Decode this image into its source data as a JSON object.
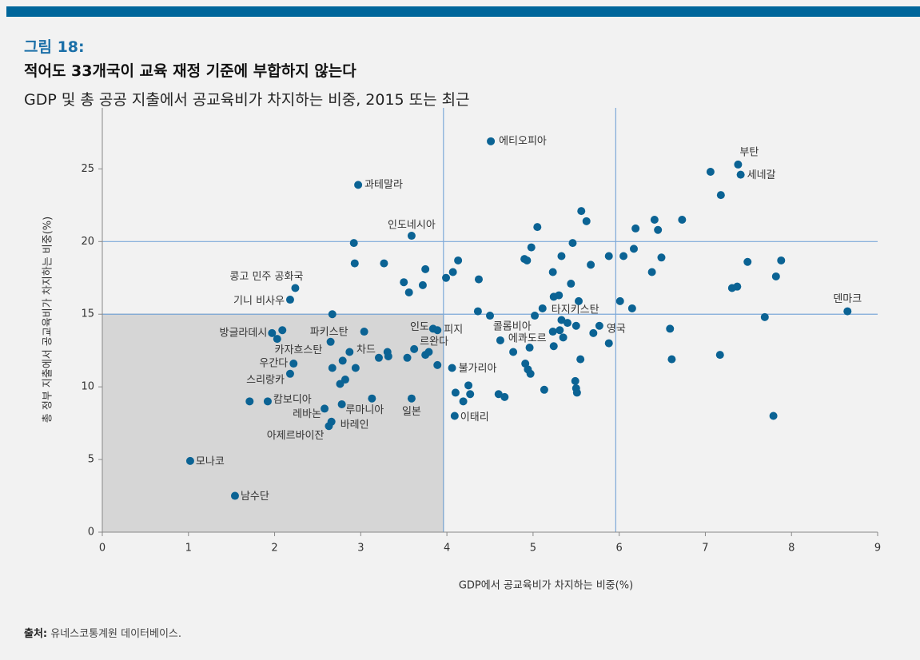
{
  "chart_data": {
    "type": "scatter",
    "figure_label": "그림 18:",
    "title": "적어도 33개국이 교육 재정 기준에 부합하지 않는다",
    "subtitle": "GDP 및 총 공공 지출에서 공교육비가 차지하는 비중, 2015 또는 최근",
    "xlabel": "GDP에서 공교육비가 차지하는 비중(%)",
    "ylabel": "총 정부 지출에서 공교육비가 차지하는 비중(%)",
    "source_label": "출처:",
    "source": "유네스코통계원 데이터베이스.",
    "xlim": [
      0,
      9
    ],
    "ylim": [
      0,
      29.2
    ],
    "xticks": [
      0,
      1,
      2,
      3,
      4,
      5,
      6,
      7,
      8,
      9
    ],
    "yticks": [
      0,
      5,
      10,
      15,
      20,
      25
    ],
    "xlines": [
      3.96,
      5.96
    ],
    "ylines": [
      15,
      20
    ],
    "color": "#0b6394",
    "line_color": "#7da9d8",
    "shade_color": "#d6d6d6",
    "x": [
      4.51,
      7.38,
      7.41,
      2.97,
      3.59,
      2.24,
      2.18,
      8.65,
      5.11,
      1.97,
      2.65,
      3.84,
      3.89,
      5.23,
      4.62,
      5.77,
      2.87,
      3.21,
      3.75,
      2.22,
      2.18,
      4.06,
      1.92,
      2.58,
      3.13,
      3.59,
      4.09,
      2.66,
      2.63,
      1.02,
      1.54,
      2.92,
      2.93,
      3.27,
      3.75,
      3.5,
      3.56,
      3.72,
      3.99,
      4.07,
      4.13,
      4.37,
      2.67,
      2.09,
      2.03,
      3.04,
      3.31,
      3.32,
      3.54,
      3.62,
      3.79,
      3.89,
      2.67,
      2.94,
      2.79,
      2.82,
      2.76,
      1.71,
      4.25,
      4.1,
      4.19,
      4.27,
      4.6,
      4.67,
      2.78,
      4.36,
      4.5,
      4.77,
      4.96,
      4.91,
      4.94,
      4.97,
      5.13,
      5.49,
      5.5,
      5.51,
      5.55,
      5.24,
      5.35,
      5.31,
      5.33,
      5.4,
      5.5,
      5.7,
      5.88,
      5.02,
      5.24,
      5.3,
      5.23,
      5.44,
      5.53,
      4.9,
      4.93,
      5.33,
      5.67,
      4.98,
      5.46,
      5.05,
      5.56,
      5.62,
      5.88,
      6.05,
      6.17,
      6.19,
      6.01,
      6.15,
      6.41,
      6.45,
      6.49,
      6.38,
      6.73,
      6.59,
      6.61,
      7.06,
      7.18,
      7.17,
      7.31,
      7.37,
      7.49,
      7.69,
      7.82,
      7.88,
      7.79
    ],
    "values": [
      26.9,
      25.3,
      24.6,
      23.9,
      20.4,
      16.8,
      16.0,
      15.2,
      15.4,
      13.7,
      13.1,
      14.0,
      13.9,
      13.8,
      13.2,
      14.2,
      12.4,
      12.0,
      12.2,
      11.6,
      10.9,
      11.3,
      9.0,
      8.5,
      9.2,
      9.2,
      8.0,
      7.6,
      7.3,
      4.9,
      2.5,
      19.9,
      18.5,
      18.5,
      18.1,
      17.2,
      16.5,
      17.0,
      17.5,
      17.9,
      18.7,
      17.4,
      15.0,
      13.9,
      13.3,
      13.8,
      12.4,
      12.1,
      12.0,
      12.6,
      12.4,
      11.5,
      11.3,
      11.3,
      11.8,
      10.5,
      10.2,
      9.0,
      10.1,
      9.6,
      9.0,
      9.5,
      9.5,
      9.3,
      8.8,
      15.2,
      14.9,
      12.4,
      12.7,
      11.6,
      11.2,
      10.9,
      9.8,
      10.4,
      9.9,
      9.6,
      11.9,
      12.8,
      13.4,
      13.9,
      14.6,
      14.4,
      14.2,
      13.7,
      13.0,
      14.9,
      16.2,
      16.3,
      17.9,
      17.1,
      15.9,
      18.8,
      18.7,
      19.0,
      18.4,
      19.6,
      19.9,
      21.0,
      22.1,
      21.4,
      19.0,
      19.0,
      19.5,
      20.9,
      15.9,
      15.4,
      21.5,
      20.8,
      18.9,
      17.9,
      21.5,
      14.0,
      11.9,
      24.8,
      23.2,
      12.2,
      16.8,
      16.9,
      18.6,
      14.8,
      17.6,
      18.7,
      8.0
    ],
    "labels": [
      "에티오피아",
      "부탄",
      "세네갈",
      "과테말라",
      "인도네시아",
      "콩고 민주 공화국",
      "기니 비사우",
      "덴마크",
      "타지키스탄",
      "방글라데시",
      "파키스탄",
      "인도",
      "피지",
      "콜롬비아",
      "에콰도르",
      "영국",
      "카자흐스탄",
      "차드",
      "르완다",
      "우간다",
      "스리랑카",
      "불가리아",
      "캄보디아",
      "레바논",
      "루마니아",
      "일본",
      "이태리",
      "바레인",
      "아제르바이잔",
      "모나코",
      "남수단"
    ]
  }
}
